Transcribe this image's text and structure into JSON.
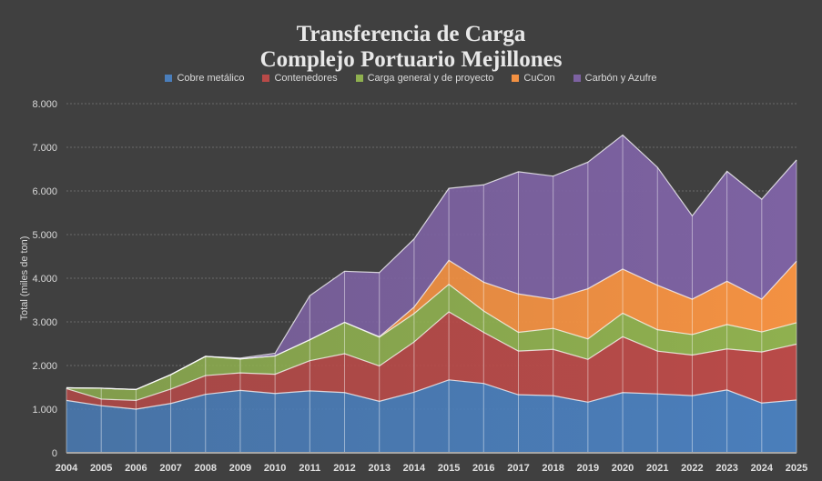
{
  "chart_data": {
    "type": "area",
    "stacked": true,
    "title": [
      "Transferencia de Carga",
      "Complejo Portuario Mejillones"
    ],
    "ylabel": "Total (miles de ton)",
    "xlabel": "",
    "ylim": [
      0,
      8000
    ],
    "yticks": [
      "0",
      "1.000",
      "2.000",
      "3.000",
      "4.000",
      "5.000",
      "6.000",
      "7.000",
      "8.000"
    ],
    "ytick_values": [
      0,
      1000,
      2000,
      3000,
      4000,
      5000,
      6000,
      7000,
      8000
    ],
    "grid": true,
    "legend_position": "top",
    "categories": [
      "2004",
      "2005",
      "2006",
      "2007",
      "2008",
      "2009",
      "2010",
      "2011",
      "2012",
      "2013",
      "2014",
      "2015",
      "2016",
      "2017",
      "2018",
      "2019",
      "2020",
      "2021",
      "2022",
      "2023",
      "2024",
      "2025"
    ],
    "series": [
      {
        "name": "Cobre metálico",
        "color": "#4a7ebb",
        "values": [
          1200,
          1080,
          1000,
          1130,
          1340,
          1430,
          1360,
          1420,
          1380,
          1180,
          1390,
          1670,
          1590,
          1330,
          1310,
          1160,
          1380,
          1350,
          1310,
          1440,
          1140,
          1210
        ]
      },
      {
        "name": "Contenedores",
        "color": "#b94a48",
        "values": [
          270,
          150,
          200,
          330,
          430,
          400,
          440,
          690,
          890,
          810,
          1150,
          1560,
          1170,
          1000,
          1060,
          980,
          1280,
          980,
          930,
          940,
          1170,
          1280
        ]
      },
      {
        "name": "Carga general y de proyecto",
        "color": "#8fb04f",
        "values": [
          20,
          250,
          250,
          330,
          440,
          320,
          420,
          480,
          720,
          660,
          650,
          630,
          490,
          430,
          480,
          470,
          540,
          490,
          470,
          560,
          460,
          490
        ]
      },
      {
        "name": "CuCon",
        "color": "#f39142",
        "values": [
          0,
          0,
          0,
          0,
          0,
          0,
          0,
          0,
          0,
          10,
          150,
          550,
          660,
          880,
          670,
          1150,
          1010,
          1020,
          810,
          990,
          750,
          1410
        ]
      },
      {
        "name": "Carbón y Azufre",
        "color": "#7d62a2",
        "values": [
          0,
          0,
          0,
          0,
          0,
          20,
          60,
          1010,
          1170,
          1470,
          1560,
          1650,
          2230,
          2800,
          2820,
          2900,
          3070,
          2700,
          1910,
          2520,
          2290,
          2320
        ]
      }
    ]
  }
}
